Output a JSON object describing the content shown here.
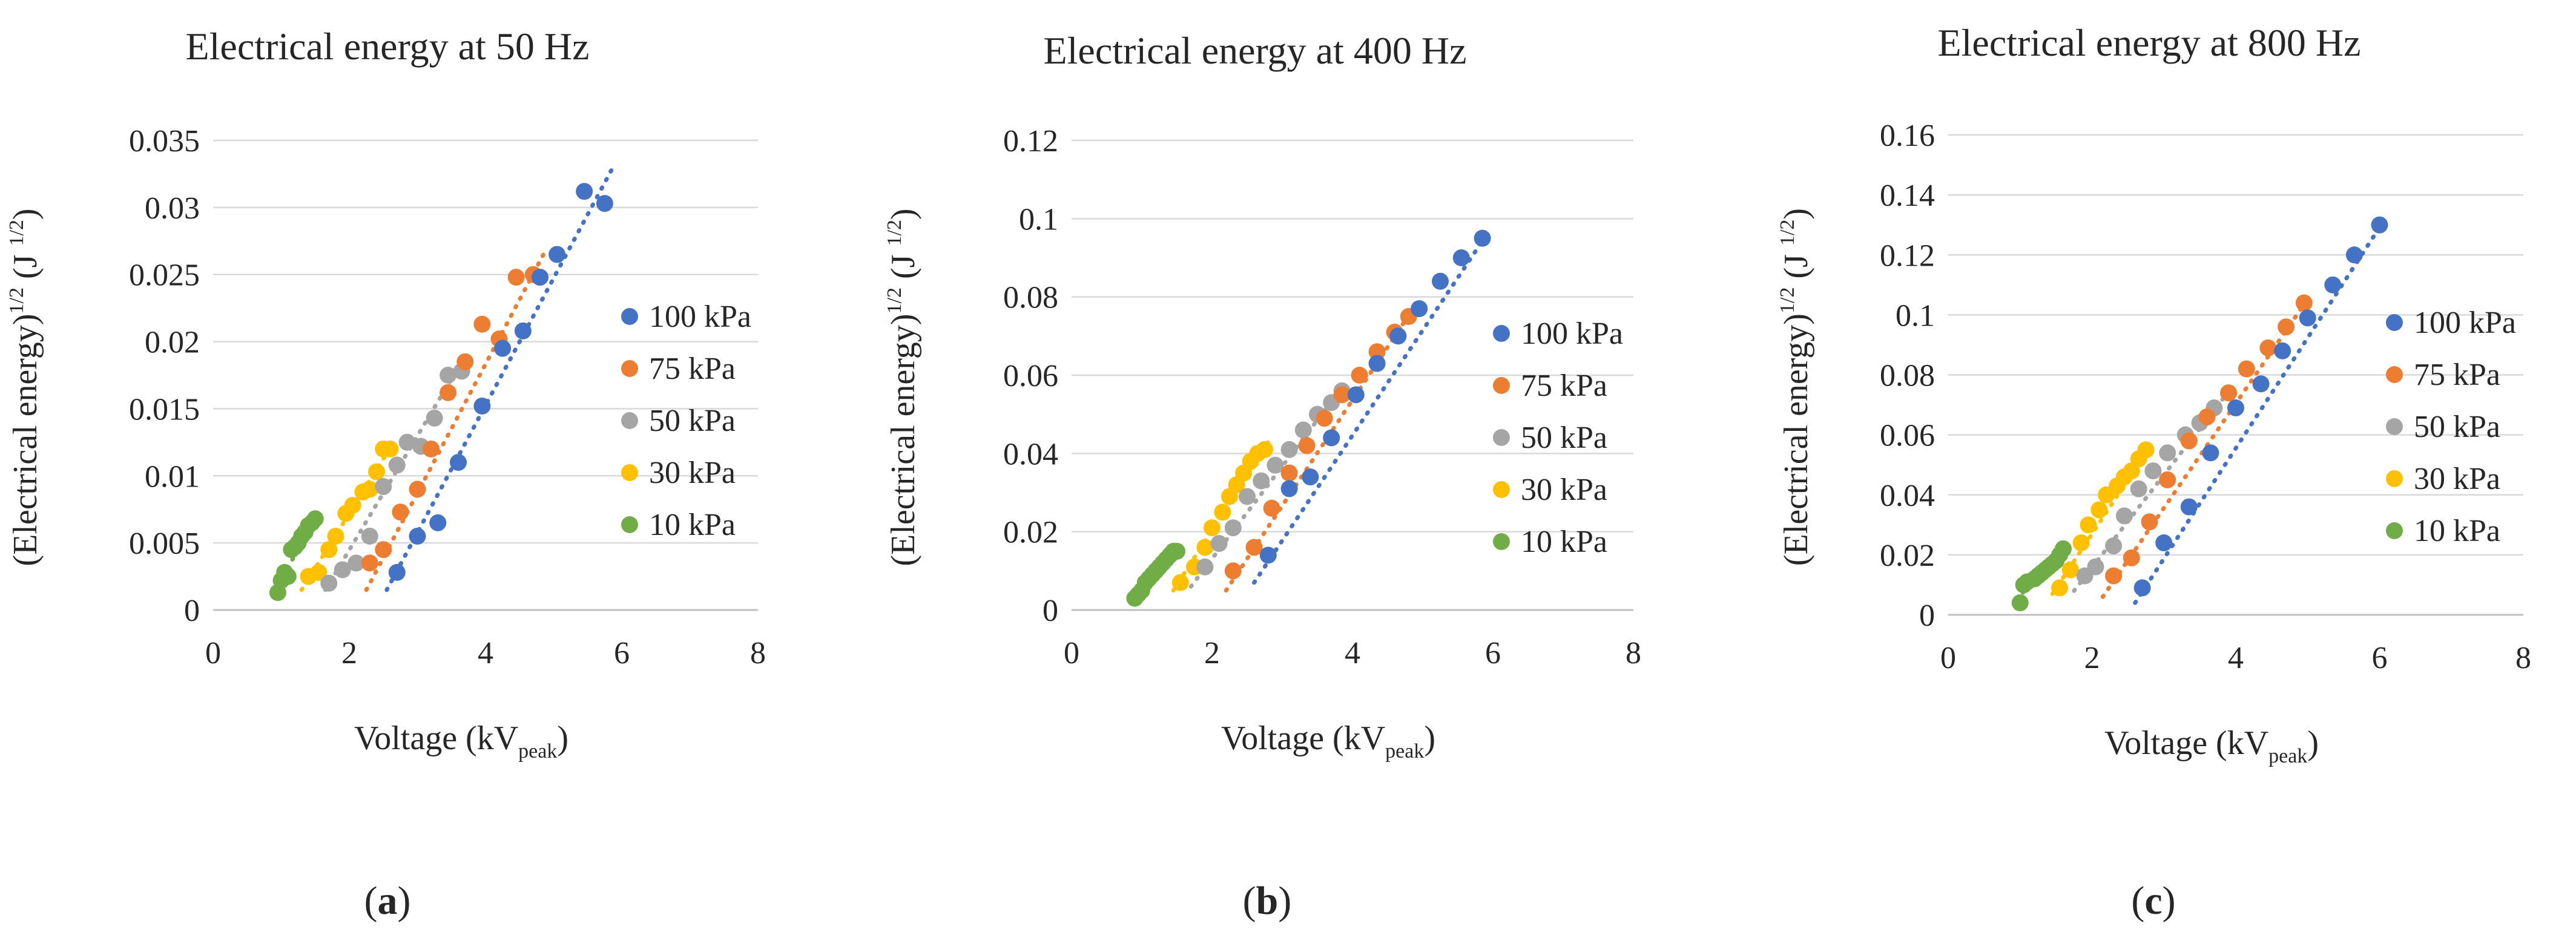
{
  "figure": {
    "captions": [
      "(a)",
      "(b)",
      "(c)"
    ],
    "caption_letters": [
      "a",
      "b",
      "c"
    ]
  },
  "colors": {
    "100 kPa": "#4472C4",
    "75 kPa": "#ED7D31",
    "50 kPa": "#A5A5A5",
    "30 kPa": "#FFC000",
    "10 kPa": "#70AD47",
    "grid": "#D9D9D9",
    "axis": "#BFBFBF",
    "text": "#262626"
  },
  "chart_data": [
    {
      "type": "scatter",
      "title": "Electrical energy at 50 Hz",
      "xlabel": "Voltage (kV",
      "xlabel_sub": "peak",
      "xlabel_end": ")",
      "ylabel": "(Electrical energy)",
      "ylabel_sup": "1/2",
      "ylabel_unit": "(J",
      "ylabel_unit_sup": "1/2",
      "ylabel_end": ")",
      "xlim": [
        0,
        8
      ],
      "ylim": [
        0,
        0.035
      ],
      "xticks": [
        "0",
        "2",
        "4",
        "6",
        "8"
      ],
      "yticks": [
        "0",
        "0.005",
        "0.01",
        "0.015",
        "0.02",
        "0.025",
        "0.03",
        "0.035"
      ],
      "grid": true,
      "legend": "right",
      "trendline": "linear, dotted",
      "series": [
        {
          "name": "100 kPa",
          "x": [
            2.7,
            3.0,
            3.3,
            3.6,
            3.95,
            4.25,
            4.55,
            4.8,
            5.05,
            5.45,
            5.75
          ],
          "y": [
            0.0028,
            0.0055,
            0.0065,
            0.011,
            0.0152,
            0.0195,
            0.0208,
            0.0248,
            0.0265,
            0.0312,
            0.0303
          ],
          "trend": [
            [
              2.55,
              0.0015
            ],
            [
              5.85,
              0.0328
            ]
          ]
        },
        {
          "name": "75 kPa",
          "x": [
            2.3,
            2.5,
            2.75,
            3.0,
            3.2,
            3.45,
            3.7,
            3.95,
            4.2,
            4.45,
            4.7
          ],
          "y": [
            0.0035,
            0.0045,
            0.0073,
            0.009,
            0.012,
            0.0162,
            0.0185,
            0.0213,
            0.0202,
            0.0248,
            0.025
          ],
          "trend": [
            [
              2.25,
              0.0015
            ],
            [
              4.85,
              0.0265
            ]
          ]
        },
        {
          "name": "50 kPa",
          "x": [
            1.7,
            1.9,
            2.1,
            2.3,
            2.5,
            2.7,
            2.85,
            3.05,
            3.25,
            3.45,
            3.65
          ],
          "y": [
            0.002,
            0.003,
            0.0035,
            0.0055,
            0.0092,
            0.0108,
            0.0125,
            0.0122,
            0.0143,
            0.0175,
            0.0178
          ],
          "trend": [
            [
              1.65,
              0.0015
            ],
            [
              3.65,
              0.0185
            ]
          ]
        },
        {
          "name": "30 kPa",
          "x": [
            1.4,
            1.55,
            1.7,
            1.8,
            1.95,
            2.05,
            2.2,
            2.3,
            2.4,
            2.5,
            2.6
          ],
          "y": [
            0.0025,
            0.0028,
            0.0045,
            0.0055,
            0.0072,
            0.0078,
            0.0088,
            0.009,
            0.0103,
            0.012,
            0.012
          ],
          "trend": [
            [
              1.3,
              0.0015
            ],
            [
              2.65,
              0.0125
            ]
          ]
        },
        {
          "name": "10 kPa",
          "x": [
            0.95,
            1.0,
            1.05,
            1.1,
            1.15,
            1.2,
            1.25,
            1.3,
            1.35,
            1.4,
            1.45,
            1.5
          ],
          "y": [
            0.0013,
            0.0022,
            0.0028,
            0.0025,
            0.0045,
            0.0047,
            0.005,
            0.0055,
            0.0058,
            0.0063,
            0.0065,
            0.0068
          ],
          "trend": [
            [
              0.9,
              0.0012
            ],
            [
              1.55,
              0.0075
            ]
          ]
        }
      ]
    },
    {
      "type": "scatter",
      "title": "Electrical energy at 400 Hz",
      "xlabel": "Voltage (kV",
      "xlabel_sub": "peak",
      "xlabel_end": ")",
      "ylabel": "(Electrical energy)",
      "ylabel_sup": "1/2",
      "ylabel_unit": "(J",
      "ylabel_unit_sup": "1/2",
      "ylabel_end": ")",
      "xlim": [
        0,
        8
      ],
      "ylim": [
        0,
        0.12
      ],
      "xticks": [
        "0",
        "2",
        "4",
        "6",
        "8"
      ],
      "yticks": [
        "0",
        "0.02",
        "0.04",
        "0.06",
        "0.08",
        "0.1",
        "0.12"
      ],
      "grid": true,
      "legend": "right",
      "trendline": "linear, dotted",
      "series": [
        {
          "name": "100 kPa",
          "x": [
            2.8,
            3.1,
            3.4,
            3.7,
            4.05,
            4.35,
            4.65,
            4.95,
            5.25,
            5.55,
            5.85
          ],
          "y": [
            0.014,
            0.031,
            0.034,
            0.044,
            0.055,
            0.063,
            0.07,
            0.077,
            0.084,
            0.09,
            0.095
          ],
          "trend": [
            [
              2.6,
              0.007
            ],
            [
              5.95,
              0.097
            ]
          ]
        },
        {
          "name": "75 kPa",
          "x": [
            2.3,
            2.6,
            2.85,
            3.1,
            3.35,
            3.6,
            3.85,
            4.1,
            4.35,
            4.6,
            4.8
          ],
          "y": [
            0.01,
            0.016,
            0.026,
            0.035,
            0.042,
            0.049,
            0.055,
            0.06,
            0.066,
            0.071,
            0.075
          ],
          "trend": [
            [
              2.2,
              0.005
            ],
            [
              4.9,
              0.078
            ]
          ]
        },
        {
          "name": "50 kPa",
          "x": [
            1.9,
            2.1,
            2.3,
            2.5,
            2.7,
            2.9,
            3.1,
            3.3,
            3.5,
            3.7,
            3.85
          ],
          "y": [
            0.011,
            0.017,
            0.021,
            0.029,
            0.033,
            0.037,
            0.041,
            0.046,
            0.05,
            0.053,
            0.056
          ],
          "trend": [
            [
              1.7,
              0.006
            ],
            [
              3.9,
              0.058
            ]
          ]
        },
        {
          "name": "30 kPa",
          "x": [
            1.55,
            1.75,
            1.9,
            2.0,
            2.15,
            2.25,
            2.35,
            2.45,
            2.55,
            2.65,
            2.75
          ],
          "y": [
            0.007,
            0.011,
            0.016,
            0.021,
            0.025,
            0.029,
            0.032,
            0.035,
            0.038,
            0.04,
            0.041
          ],
          "trend": [
            [
              1.45,
              0.005
            ],
            [
              2.8,
              0.043
            ]
          ]
        },
        {
          "name": "10 kPa",
          "x": [
            0.9,
            0.95,
            1.0,
            1.05,
            1.1,
            1.15,
            1.2,
            1.25,
            1.3,
            1.35,
            1.4,
            1.45,
            1.5
          ],
          "y": [
            0.003,
            0.004,
            0.005,
            0.007,
            0.008,
            0.009,
            0.01,
            0.011,
            0.012,
            0.013,
            0.014,
            0.015,
            0.015
          ],
          "trend": [
            [
              0.85,
              0.002
            ],
            [
              1.55,
              0.016
            ]
          ]
        }
      ]
    },
    {
      "type": "scatter",
      "title": "Electrical energy at 800 Hz",
      "xlabel": "Voltage (kV",
      "xlabel_sub": "peak",
      "xlabel_end": ")",
      "ylabel": "(Electrical energy)",
      "ylabel_sup": "1/2",
      "ylabel_unit": "(J",
      "ylabel_unit_sup": "1/2",
      "ylabel_end": ")",
      "xlim": [
        0,
        8
      ],
      "ylim": [
        0,
        0.16
      ],
      "xticks": [
        "0",
        "2",
        "4",
        "6",
        "8"
      ],
      "yticks": [
        "0",
        "0.02",
        "0.04",
        "0.06",
        "0.08",
        "0.1",
        "0.12",
        "0.14",
        "0.16"
      ],
      "grid": true,
      "legend": "right",
      "trendline": "linear, dotted",
      "series": [
        {
          "name": "100 kPa",
          "x": [
            2.7,
            3.0,
            3.35,
            3.65,
            4.0,
            4.35,
            4.65,
            5.0,
            5.35,
            5.65,
            6.0
          ],
          "y": [
            0.009,
            0.024,
            0.036,
            0.054,
            0.069,
            0.077,
            0.088,
            0.099,
            0.11,
            0.12,
            0.13
          ],
          "trend": [
            [
              2.6,
              0.004
            ],
            [
              6.05,
              0.131
            ]
          ]
        },
        {
          "name": "75 kPa",
          "x": [
            2.3,
            2.55,
            2.8,
            3.05,
            3.35,
            3.6,
            3.9,
            4.15,
            4.45,
            4.7,
            4.95
          ],
          "y": [
            0.013,
            0.019,
            0.031,
            0.045,
            0.058,
            0.066,
            0.074,
            0.082,
            0.089,
            0.096,
            0.104
          ],
          "trend": [
            [
              2.15,
              0.006
            ],
            [
              5.05,
              0.107
            ]
          ]
        },
        {
          "name": "50 kPa",
          "x": [
            1.9,
            2.05,
            2.3,
            2.45,
            2.65,
            2.85,
            3.05,
            3.3,
            3.5,
            3.7,
            3.9
          ],
          "y": [
            0.013,
            0.016,
            0.023,
            0.033,
            0.042,
            0.048,
            0.054,
            0.06,
            0.064,
            0.069,
            0.074
          ],
          "trend": [
            [
              1.75,
              0.008
            ],
            [
              3.95,
              0.076
            ]
          ]
        },
        {
          "name": "30 kPa",
          "x": [
            1.55,
            1.7,
            1.85,
            1.95,
            2.1,
            2.2,
            2.35,
            2.45,
            2.55,
            2.65,
            2.75
          ],
          "y": [
            0.009,
            0.015,
            0.024,
            0.03,
            0.035,
            0.04,
            0.043,
            0.046,
            0.048,
            0.052,
            0.055
          ],
          "trend": [
            [
              1.45,
              0.007
            ],
            [
              2.8,
              0.056
            ]
          ]
        },
        {
          "name": "10 kPa",
          "x": [
            1.0,
            1.05,
            1.1,
            1.2,
            1.25,
            1.3,
            1.35,
            1.4,
            1.45,
            1.5,
            1.55,
            1.6
          ],
          "y": [
            0.004,
            0.01,
            0.011,
            0.012,
            0.013,
            0.014,
            0.015,
            0.016,
            0.017,
            0.018,
            0.02,
            0.022
          ],
          "trend": [
            [
              0.95,
              0.005
            ],
            [
              1.65,
              0.024
            ]
          ]
        }
      ]
    }
  ]
}
